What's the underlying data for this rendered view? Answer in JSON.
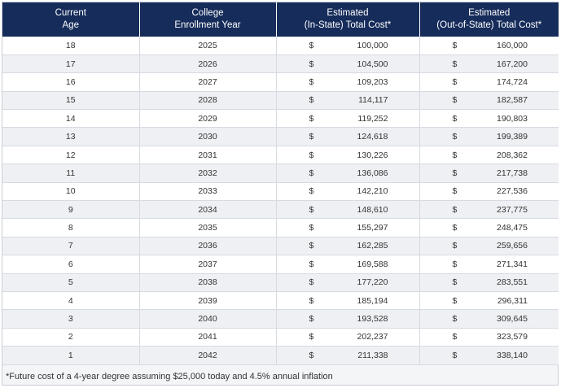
{
  "headers": [
    [
      "Current",
      "Age"
    ],
    [
      "College",
      "Enrollment Year"
    ],
    [
      "Estimated",
      "(In-State) Total Cost*"
    ],
    [
      "Estimated",
      "(Out-of-State) Total Cost*"
    ]
  ],
  "currency_symbol": "$",
  "rows": [
    {
      "age": "18",
      "year": "2025",
      "in_state": "100,000",
      "out_state": "160,000"
    },
    {
      "age": "17",
      "year": "2026",
      "in_state": "104,500",
      "out_state": "167,200"
    },
    {
      "age": "16",
      "year": "2027",
      "in_state": "109,203",
      "out_state": "174,724"
    },
    {
      "age": "15",
      "year": "2028",
      "in_state": "114,117",
      "out_state": "182,587"
    },
    {
      "age": "14",
      "year": "2029",
      "in_state": "119,252",
      "out_state": "190,803"
    },
    {
      "age": "13",
      "year": "2030",
      "in_state": "124,618",
      "out_state": "199,389"
    },
    {
      "age": "12",
      "year": "2031",
      "in_state": "130,226",
      "out_state": "208,362"
    },
    {
      "age": "11",
      "year": "2032",
      "in_state": "136,086",
      "out_state": "217,738"
    },
    {
      "age": "10",
      "year": "2033",
      "in_state": "142,210",
      "out_state": "227,536"
    },
    {
      "age": "9",
      "year": "2034",
      "in_state": "148,610",
      "out_state": "237,775"
    },
    {
      "age": "8",
      "year": "2035",
      "in_state": "155,297",
      "out_state": "248,475"
    },
    {
      "age": "7",
      "year": "2036",
      "in_state": "162,285",
      "out_state": "259,656"
    },
    {
      "age": "6",
      "year": "2037",
      "in_state": "169,588",
      "out_state": "271,341"
    },
    {
      "age": "5",
      "year": "2038",
      "in_state": "177,220",
      "out_state": "283,551"
    },
    {
      "age": "4",
      "year": "2039",
      "in_state": "185,194",
      "out_state": "296,311"
    },
    {
      "age": "3",
      "year": "2040",
      "in_state": "193,528",
      "out_state": "309,645"
    },
    {
      "age": "2",
      "year": "2041",
      "in_state": "202,237",
      "out_state": "323,579"
    },
    {
      "age": "1",
      "year": "2042",
      "in_state": "211,338",
      "out_state": "338,140"
    }
  ],
  "footnote": "*Future cost of a 4-year degree assuming $25,000 today and 4.5% annual inflation",
  "colors": {
    "header_bg": "#162c5a",
    "header_text": "#ffffff",
    "stripe": "#eef0f3"
  }
}
